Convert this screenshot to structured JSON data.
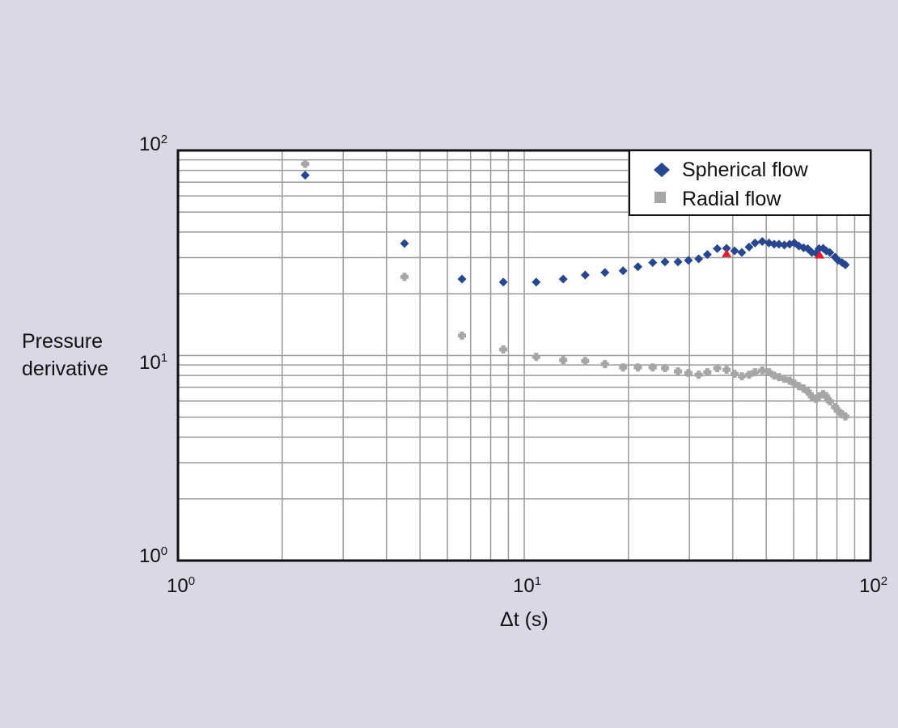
{
  "chart_data": {
    "type": "scatter",
    "title": "",
    "xlabel": "Δt (s)",
    "ylabel": "Pressure derivative",
    "xscale": "log",
    "yscale": "log",
    "xlim": [
      1,
      100
    ],
    "ylim": [
      1,
      100
    ],
    "grid": true,
    "legend_position": "upper right",
    "x_ticks": [
      {
        "base": "10",
        "exp": "0",
        "value": 1
      },
      {
        "base": "10",
        "exp": "1",
        "value": 10
      },
      {
        "base": "10",
        "exp": "2",
        "value": 100
      }
    ],
    "y_ticks": [
      {
        "base": "10",
        "exp": "0",
        "value": 1
      },
      {
        "base": "10",
        "exp": "1",
        "value": 10
      },
      {
        "base": "10",
        "exp": "2",
        "value": 100
      }
    ],
    "x": [
      2.33,
      4.51,
      6.61,
      8.7,
      10.83,
      12.96,
      15.0,
      17.1,
      19.3,
      21.3,
      23.5,
      25.5,
      27.8,
      29.8,
      31.9,
      33.8,
      36.1,
      38.4,
      40.5,
      42.5,
      44.6,
      46.4,
      48.7,
      50.9,
      52.7,
      54.4,
      56.4,
      58.4,
      60.3,
      62.1,
      64.1,
      65.9,
      67.7,
      69.6,
      71.0,
      73.0,
      74.5,
      76.3,
      79.0,
      80.6,
      82.8,
      84.6
    ],
    "series": [
      {
        "name": "Spherical flow",
        "marker": "diamond",
        "color": "#26478f",
        "values": [
          75.7,
          35.2,
          23.6,
          22.8,
          22.8,
          23.6,
          24.7,
          25.4,
          25.9,
          27.1,
          28.4,
          28.6,
          28.6,
          29.1,
          29.6,
          31.1,
          33.2,
          33.3,
          32.4,
          31.8,
          33.8,
          35.4,
          36.0,
          35.4,
          34.9,
          34.9,
          34.6,
          34.9,
          35.4,
          34.2,
          33.5,
          33.2,
          31.8,
          31.6,
          33.2,
          33.3,
          32.4,
          31.8,
          30.2,
          29.1,
          28.4,
          27.7
        ]
      },
      {
        "name": "Radial flow",
        "marker": "square",
        "color": "#a6a6a6",
        "values": [
          86.0,
          24.2,
          12.5,
          10.7,
          9.85,
          9.5,
          9.41,
          9.08,
          8.75,
          8.75,
          8.75,
          8.68,
          8.37,
          8.22,
          8.06,
          8.29,
          8.68,
          8.52,
          8.14,
          7.92,
          8.06,
          8.29,
          8.45,
          8.29,
          7.99,
          7.85,
          7.7,
          7.55,
          7.3,
          7.1,
          6.91,
          6.67,
          6.32,
          6.15,
          6.32,
          6.49,
          6.32,
          5.98,
          5.61,
          5.37,
          5.17,
          5.04
        ]
      }
    ],
    "annotations": [
      {
        "type": "triangle-marker",
        "color": "#e0202f",
        "x": 38.4,
        "y": 31.3
      },
      {
        "type": "triangle-marker",
        "color": "#e0202f",
        "x": 71.3,
        "y": 30.8
      }
    ]
  },
  "legend": {
    "items": [
      {
        "label": "Spherical flow",
        "color": "#26478f",
        "marker": "diamond"
      },
      {
        "label": "Radial flow",
        "color": "#a6a6a6",
        "marker": "square"
      }
    ]
  },
  "axes": {
    "x_label": "Δt (s)",
    "y_label_line1": "Pressure",
    "y_label_line2": "derivative"
  },
  "colors": {
    "background": "#d9d8e6",
    "plot_bg": "#ffffff",
    "grid": "#9a9a9a",
    "frame": "#111111"
  }
}
